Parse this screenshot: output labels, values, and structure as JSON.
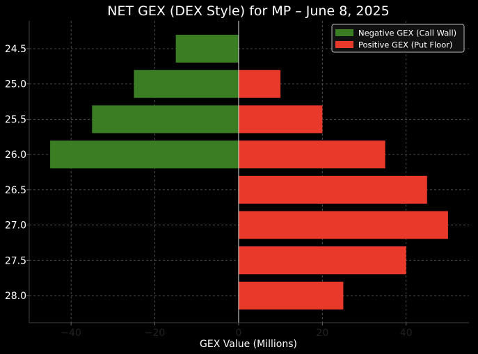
{
  "chart_data": {
    "type": "bar",
    "orientation": "horizontal",
    "title": "NET GEX (DEX Style) for MP – June 8, 2025",
    "xlabel": "GEX Value (Millions)",
    "ylabel": "",
    "categories": [
      "24.5",
      "25.0",
      "25.5",
      "26.0",
      "26.5",
      "27.0",
      "27.5",
      "28.0"
    ],
    "series": [
      {
        "name": "Negative GEX (Call Wall)",
        "color": "#3a7d23",
        "values": [
          -15,
          -25,
          -35,
          -45,
          0,
          0,
          0,
          0
        ]
      },
      {
        "name": "Positive GEX (Put Floor)",
        "color": "#e8392a",
        "values": [
          0,
          10,
          20,
          35,
          45,
          50,
          40,
          25
        ]
      }
    ],
    "xlim": [
      -50,
      55
    ],
    "xticks": [
      -40,
      -20,
      0,
      20,
      40
    ],
    "xtick_labels": [
      "−40",
      "−20",
      "0",
      "20",
      "40"
    ],
    "grid": true,
    "legend_position": "top-right",
    "background": "#000000",
    "text_color": "#ffffff",
    "grid_color": "#8a8a8a",
    "zero_line_color": "#d9d9d9"
  }
}
